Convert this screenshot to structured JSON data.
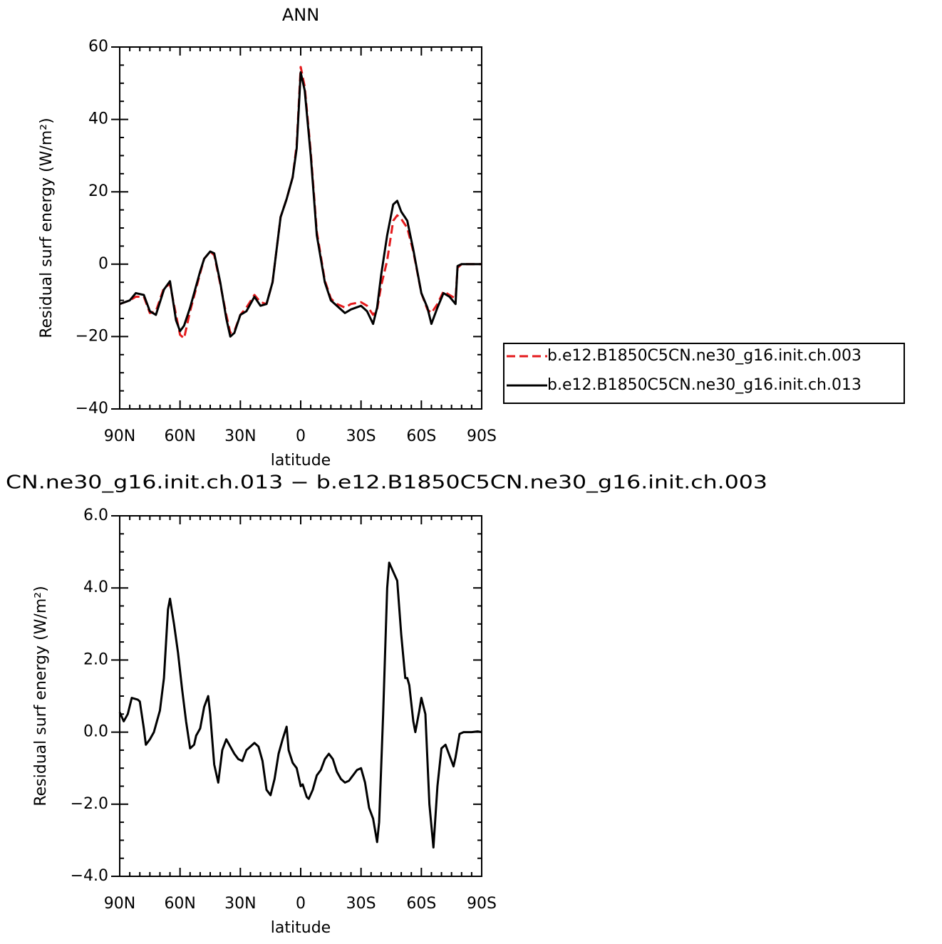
{
  "chart_data": [
    {
      "type": "line",
      "title": "ANN",
      "xlabel": "latitude",
      "ylabel": "Residual surf energy (W/m²)",
      "x": [
        90,
        85,
        82,
        78,
        75,
        72,
        68,
        65,
        62,
        60,
        58,
        55,
        50,
        48,
        45,
        43,
        40,
        37,
        35,
        33,
        30,
        27,
        23,
        20,
        17,
        14,
        10,
        7,
        4,
        2,
        0,
        -2,
        -5,
        -8,
        -12,
        -15,
        -18,
        -22,
        -25,
        -30,
        -33,
        -36,
        -38,
        -40,
        -43,
        -46,
        -48,
        -50,
        -53,
        -56,
        -60,
        -63,
        -65,
        -68,
        -71,
        -74,
        -77,
        -78,
        -80,
        -85,
        -90
      ],
      "series": [
        {
          "name": "b.e12.B1850C5CN.ne30_g16.init.ch.003",
          "color": "#e41a1c",
          "line_style": "dashed",
          "values": [
            -11,
            -10,
            -9,
            -9,
            -13.5,
            -13,
            -6.5,
            -5.5,
            -14,
            -19.5,
            -20.5,
            -13,
            -2.5,
            1.5,
            3.5,
            2.5,
            -5.5,
            -14,
            -19,
            -18.5,
            -14,
            -12,
            -8.5,
            -10.5,
            -11,
            -5,
            13,
            18,
            24,
            33,
            54.5,
            49,
            31,
            9,
            -4.5,
            -9.5,
            -11,
            -12,
            -11,
            -10.5,
            -11.5,
            -14,
            -12.5,
            -6,
            1,
            12,
            13.5,
            12.5,
            10,
            3.5,
            -8,
            -12.5,
            -13.5,
            -11,
            -7.5,
            -8.5,
            -9.5,
            -1,
            0,
            0,
            0
          ]
        },
        {
          "name": "b.e12.B1850C5CN.ne30_g16.init.ch.013",
          "color": "#000000",
          "line_style": "solid",
          "values": [
            -11,
            -10,
            -8,
            -8.5,
            -13,
            -14,
            -7,
            -4.7,
            -15.5,
            -18.5,
            -17,
            -12,
            -2,
            1.5,
            3.5,
            3,
            -5,
            -15,
            -20,
            -19,
            -14,
            -13,
            -9,
            -11.5,
            -11,
            -5,
            13,
            18,
            24,
            32,
            53,
            48,
            30,
            8,
            -5,
            -10,
            -11.5,
            -13.5,
            -12.5,
            -11.5,
            -13,
            -16.5,
            -12,
            -3,
            8,
            16.5,
            17.5,
            14.5,
            12,
            4,
            -8,
            -12,
            -16.5,
            -12,
            -8,
            -9,
            -11,
            -0.5,
            0,
            0,
            0
          ]
        }
      ],
      "xlim": [
        90,
        -90
      ],
      "xticks": [
        {
          "value": 90,
          "label": "90N"
        },
        {
          "value": 60,
          "label": "60N"
        },
        {
          "value": 30,
          "label": "30N"
        },
        0,
        {
          "value": -30,
          "label": "30S"
        },
        {
          "value": -60,
          "label": "60S"
        },
        {
          "value": -90,
          "label": "90S"
        }
      ],
      "xminorticks": [
        85,
        80,
        75,
        70,
        65,
        55,
        50,
        45,
        40,
        35,
        25,
        20,
        15,
        10,
        5,
        -5,
        -10,
        -15,
        -20,
        -25,
        -35,
        -40,
        -45,
        -50,
        -55,
        -65,
        -70,
        -75,
        -80,
        -85
      ],
      "ylim": [
        -40,
        60
      ],
      "yticks": [
        {
          "value": -40,
          "label": "−40"
        },
        {
          "value": -20,
          "label": "−20"
        },
        0,
        20,
        40,
        60
      ],
      "yminorticks": [
        -35,
        -30,
        -25,
        -15,
        -10,
        -5,
        5,
        10,
        15,
        25,
        30,
        35,
        45,
        50,
        55
      ],
      "legend": "right"
    },
    {
      "type": "line",
      "title": "CN.ne30_g16.init.ch.013 − b.e12.B1850C5CN.ne30_g16.init.ch.003",
      "xlabel": "latitude",
      "ylabel": "Residual surf energy (W/m²)",
      "x": [
        90,
        88,
        86,
        84,
        81,
        80,
        78,
        77,
        75,
        73,
        70,
        68,
        66,
        65,
        63,
        61,
        59,
        57,
        55,
        53,
        52,
        50,
        48,
        46,
        45,
        43,
        41,
        39,
        37,
        35,
        33,
        31,
        29,
        27,
        25,
        23,
        21,
        19,
        17,
        15,
        13,
        11,
        9,
        7,
        6,
        4,
        2,
        0,
        -1,
        -3,
        -4,
        -6,
        -8,
        -10,
        -12,
        -14,
        -16,
        -18,
        -20,
        -22,
        -24,
        -26,
        -28,
        -30,
        -32,
        -34,
        -36,
        -38,
        -39,
        -41,
        -43,
        -44,
        -46,
        -48,
        -50,
        -52,
        -53,
        -54,
        -56,
        -57,
        -59,
        -60,
        -62,
        -64,
        -66,
        -68,
        -70,
        -72,
        -74,
        -76,
        -77,
        -79,
        -81,
        -85,
        -88,
        -90
      ],
      "values": [
        0.55,
        0.3,
        0.5,
        0.95,
        0.9,
        0.85,
        0.1,
        -0.35,
        -0.2,
        0,
        0.6,
        1.5,
        3.4,
        3.7,
        3,
        2.2,
        1.2,
        0.3,
        -0.45,
        -0.35,
        -0.1,
        0.1,
        0.7,
        1,
        0.5,
        -0.9,
        -1.4,
        -0.5,
        -0.2,
        -0.4,
        -0.6,
        -0.75,
        -0.8,
        -0.5,
        -0.4,
        -0.3,
        -0.4,
        -0.8,
        -1.6,
        -1.75,
        -1.3,
        -0.6,
        -0.2,
        0.15,
        -0.5,
        -0.85,
        -1,
        -1.5,
        -1.45,
        -1.8,
        -1.85,
        -1.6,
        -1.2,
        -1.05,
        -0.75,
        -0.6,
        -0.75,
        -1.1,
        -1.3,
        -1.4,
        -1.35,
        -1.2,
        -1.05,
        -1,
        -1.4,
        -2.1,
        -2.4,
        -3.05,
        -2.5,
        0.5,
        4,
        4.7,
        4.45,
        4.2,
        2.7,
        1.5,
        1.5,
        1.3,
        0.3,
        0,
        0.6,
        0.95,
        0.5,
        -2,
        -3.2,
        -1.5,
        -0.45,
        -0.35,
        -0.65,
        -0.95,
        -0.7,
        -0.05,
        0,
        0,
        0.02,
        0
      ],
      "color": "#000000",
      "xlim": [
        90,
        -90
      ],
      "xticks": [
        {
          "value": 90,
          "label": "90N"
        },
        {
          "value": 60,
          "label": "60N"
        },
        {
          "value": 30,
          "label": "30N"
        },
        0,
        {
          "value": -30,
          "label": "30S"
        },
        {
          "value": -60,
          "label": "60S"
        },
        {
          "value": -90,
          "label": "90S"
        }
      ],
      "xminorticks": [
        85,
        80,
        75,
        70,
        65,
        55,
        50,
        45,
        40,
        35,
        25,
        20,
        15,
        10,
        5,
        -5,
        -10,
        -15,
        -20,
        -25,
        -35,
        -40,
        -45,
        -50,
        -55,
        -65,
        -70,
        -75,
        -80,
        -85
      ],
      "ylim": [
        -4,
        6
      ],
      "yticks": [
        {
          "value": -4,
          "label": "−4.0"
        },
        {
          "value": -2,
          "label": "−2.0"
        },
        {
          "value": 0,
          "label": "0.0"
        },
        {
          "value": 2,
          "label": "2.0"
        },
        {
          "value": 4,
          "label": "4.0"
        },
        {
          "value": 6,
          "label": "6.0"
        }
      ],
      "yminorticks": [
        -3.5,
        -3,
        -2.5,
        -1.5,
        -1,
        -0.5,
        0.5,
        1,
        1.5,
        2.5,
        3,
        3.5,
        4.5,
        5,
        5.5
      ]
    }
  ]
}
